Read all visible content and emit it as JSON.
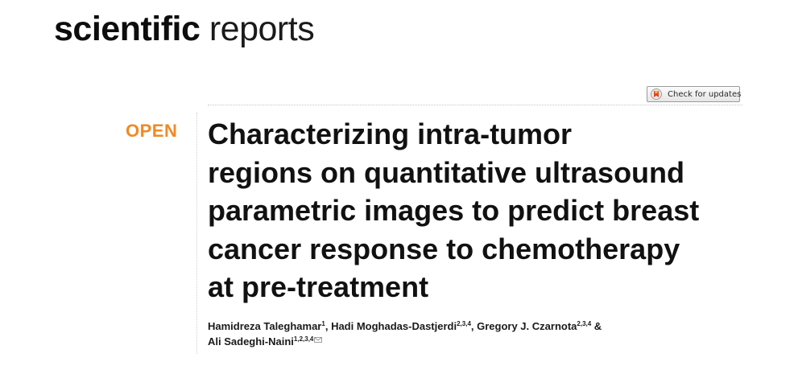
{
  "journal": {
    "name_bold": "scientific",
    "name_light": "reports"
  },
  "badge": {
    "label": "Check for updates",
    "icon": "crossmark-icon"
  },
  "article": {
    "access_label": "OPEN",
    "title_lines": [
      "Characterizing intra-tumor",
      "regions on quantitative ultrasound",
      "parametric images to predict breast",
      "cancer response to chemotherapy",
      "at pre-treatment"
    ]
  },
  "authors": [
    {
      "name": "Hamidreza Taleghamar",
      "affil": "1",
      "sep": ", "
    },
    {
      "name": "Hadi Moghadas-Dastjerdi",
      "affil": "2,3,4",
      "sep": ", "
    },
    {
      "name": "Gregory J. Czarnota",
      "affil": "2,3,4",
      "sep": " &"
    },
    {
      "name": "Ali Sadeghi-Naini",
      "affil": "1,2,3,4",
      "sep": ""
    }
  ],
  "colors": {
    "accent": "#f08a24",
    "text": "#111111"
  }
}
